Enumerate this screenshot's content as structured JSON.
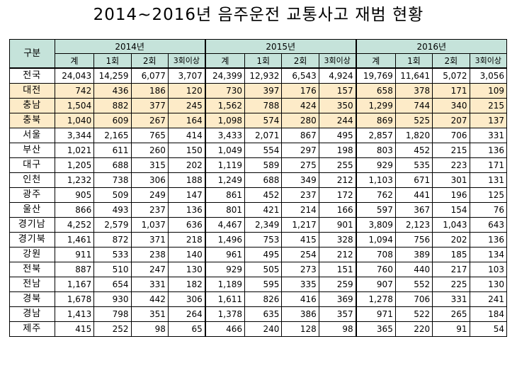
{
  "title": "2014~2016년 음주운전 교통사고 재범 현황",
  "header": {
    "corner": "구분",
    "years": [
      "2014년",
      "2015년",
      "2016년"
    ],
    "subcols": [
      "계",
      "1회",
      "2회",
      "3회이상"
    ]
  },
  "rows": [
    {
      "region": "전국",
      "values": [
        "24,043",
        "14,259",
        "6,077",
        "3,707",
        "24,399",
        "12,932",
        "6,543",
        "4,924",
        "19,769",
        "11,641",
        "5,072",
        "3,056"
      ],
      "highlight": false
    },
    {
      "region": "대전",
      "values": [
        "742",
        "436",
        "186",
        "120",
        "730",
        "397",
        "176",
        "157",
        "658",
        "378",
        "171",
        "109"
      ],
      "highlight": true
    },
    {
      "region": "충남",
      "values": [
        "1,504",
        "882",
        "377",
        "245",
        "1,562",
        "788",
        "424",
        "350",
        "1,299",
        "744",
        "340",
        "215"
      ],
      "highlight": true
    },
    {
      "region": "충북",
      "values": [
        "1,040",
        "609",
        "267",
        "164",
        "1,098",
        "574",
        "280",
        "244",
        "869",
        "525",
        "207",
        "137"
      ],
      "highlight": true
    },
    {
      "region": "서울",
      "values": [
        "3,344",
        "2,165",
        "765",
        "414",
        "3,433",
        "2,071",
        "867",
        "495",
        "2,857",
        "1,820",
        "706",
        "331"
      ],
      "highlight": false
    },
    {
      "region": "부산",
      "values": [
        "1,021",
        "611",
        "260",
        "150",
        "1,049",
        "554",
        "297",
        "198",
        "803",
        "452",
        "215",
        "136"
      ],
      "highlight": false
    },
    {
      "region": "대구",
      "values": [
        "1,205",
        "688",
        "315",
        "202",
        "1,119",
        "589",
        "275",
        "255",
        "929",
        "535",
        "223",
        "171"
      ],
      "highlight": false
    },
    {
      "region": "인천",
      "values": [
        "1,232",
        "738",
        "306",
        "188",
        "1,249",
        "688",
        "349",
        "212",
        "1,103",
        "671",
        "301",
        "131"
      ],
      "highlight": false
    },
    {
      "region": "광주",
      "values": [
        "905",
        "509",
        "249",
        "147",
        "861",
        "452",
        "237",
        "172",
        "762",
        "441",
        "196",
        "125"
      ],
      "highlight": false
    },
    {
      "region": "울산",
      "values": [
        "866",
        "493",
        "237",
        "136",
        "801",
        "421",
        "214",
        "166",
        "597",
        "367",
        "154",
        "76"
      ],
      "highlight": false
    },
    {
      "region": "경기남",
      "values": [
        "4,252",
        "2,579",
        "1,037",
        "636",
        "4,467",
        "2,349",
        "1,217",
        "901",
        "3,809",
        "2,123",
        "1,043",
        "643"
      ],
      "highlight": false
    },
    {
      "region": "경기북",
      "values": [
        "1,461",
        "872",
        "371",
        "218",
        "1,496",
        "753",
        "415",
        "328",
        "1,094",
        "756",
        "202",
        "136"
      ],
      "highlight": false
    },
    {
      "region": "강원",
      "values": [
        "911",
        "533",
        "238",
        "140",
        "961",
        "495",
        "254",
        "212",
        "708",
        "389",
        "185",
        "134"
      ],
      "highlight": false
    },
    {
      "region": "전북",
      "values": [
        "887",
        "510",
        "247",
        "130",
        "929",
        "505",
        "273",
        "151",
        "760",
        "440",
        "217",
        "103"
      ],
      "highlight": false
    },
    {
      "region": "전남",
      "values": [
        "1,167",
        "654",
        "331",
        "182",
        "1,189",
        "595",
        "335",
        "259",
        "907",
        "552",
        "225",
        "130"
      ],
      "highlight": false
    },
    {
      "region": "경북",
      "values": [
        "1,678",
        "930",
        "442",
        "306",
        "1,611",
        "826",
        "416",
        "369",
        "1,278",
        "706",
        "331",
        "241"
      ],
      "highlight": false
    },
    {
      "region": "경남",
      "values": [
        "1,413",
        "798",
        "351",
        "264",
        "1,378",
        "635",
        "386",
        "357",
        "971",
        "522",
        "265",
        "184"
      ],
      "highlight": false
    },
    {
      "region": "제주",
      "values": [
        "415",
        "252",
        "98",
        "65",
        "466",
        "240",
        "128",
        "98",
        "365",
        "220",
        "91",
        "54"
      ],
      "highlight": false
    }
  ]
}
